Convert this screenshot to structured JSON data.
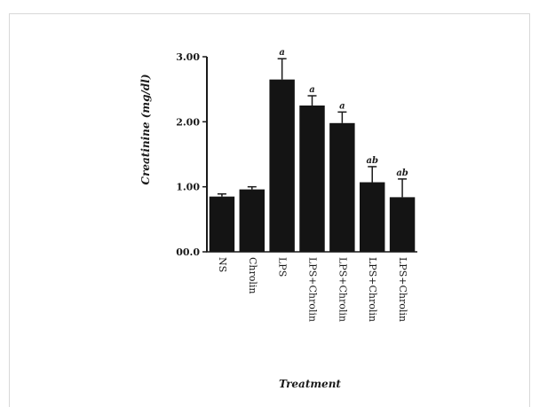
{
  "chart_data": {
    "type": "bar",
    "title": "",
    "xlabel": "Treatment",
    "ylabel": "Creatinine (mg/dl)",
    "ylim": [
      0,
      3
    ],
    "y_ticks": [
      0,
      1,
      2,
      3
    ],
    "y_tick_labels": [
      "00.0",
      "1.00",
      "2.00",
      "3.00"
    ],
    "categories": [
      "NS",
      "Chrolin",
      "LPS",
      "LPS+Chrolin",
      "LPS+Chrolin",
      "LPS+Chrolin",
      "LPS+Chrolin"
    ],
    "values": [
      0.85,
      0.96,
      2.65,
      2.25,
      1.98,
      1.07,
      0.84
    ],
    "errors": [
      0.04,
      0.04,
      0.32,
      0.15,
      0.17,
      0.24,
      0.28
    ],
    "significance": [
      "",
      "",
      "a",
      "a",
      "a",
      "ab",
      "ab"
    ],
    "bar_color": "#141414",
    "grid": false,
    "legend": "none"
  }
}
